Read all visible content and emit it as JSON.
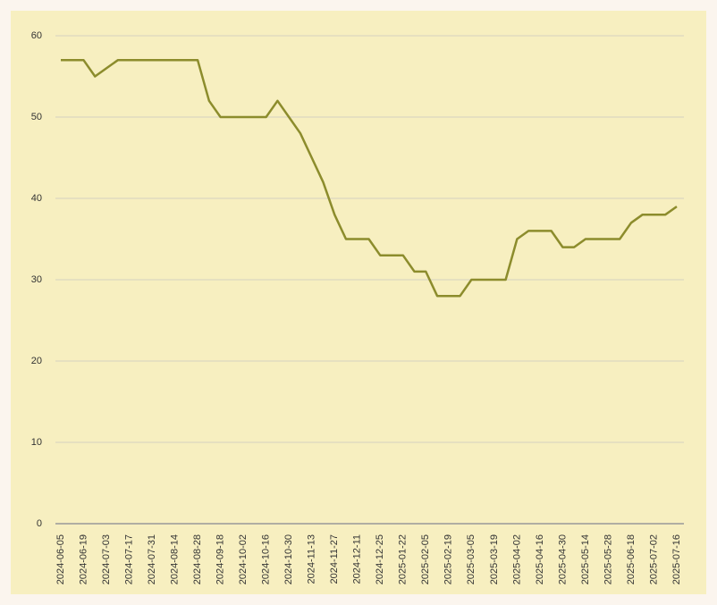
{
  "chart_data": {
    "type": "line",
    "categories": [
      "2024-06-05",
      null,
      "2024-06-19",
      null,
      "2024-07-03",
      null,
      "2024-07-17",
      null,
      "2024-07-31",
      null,
      "2024-08-14",
      null,
      "2024-08-28",
      null,
      "2024-09-18",
      null,
      "2024-10-02",
      null,
      "2024-10-16",
      null,
      "2024-10-30",
      null,
      "2024-11-13",
      null,
      "2024-11-27",
      null,
      "2024-12-11",
      null,
      "2024-12-25",
      null,
      "2025-01-22",
      null,
      "2025-02-05",
      null,
      "2025-02-19",
      null,
      "2025-03-05",
      null,
      "2025-03-19",
      null,
      "2025-04-02",
      null,
      "2025-04-16",
      null,
      "2025-04-30",
      null,
      "2025-05-14",
      null,
      "2025-05-28",
      null,
      "2025-06-18",
      null,
      "2025-07-02",
      null,
      "2025-07-16"
    ],
    "series": [
      {
        "color": "#8c8c2c",
        "values": [
          57,
          57,
          57,
          55,
          56,
          57,
          57,
          57,
          57,
          57,
          57,
          57,
          57,
          52,
          50,
          50,
          50,
          50,
          50,
          52,
          50,
          48,
          45,
          42,
          38,
          35,
          35,
          35,
          33,
          33,
          33,
          31,
          31,
          28,
          28,
          28,
          30,
          30,
          30,
          30,
          35,
          36,
          36,
          36,
          34,
          34,
          35,
          35,
          35,
          35,
          37,
          38,
          38,
          38,
          39
        ]
      }
    ],
    "ylim": [
      0,
      60
    ],
    "yticks": [
      0,
      10,
      20,
      30,
      40,
      50,
      60
    ],
    "grid": true
  }
}
